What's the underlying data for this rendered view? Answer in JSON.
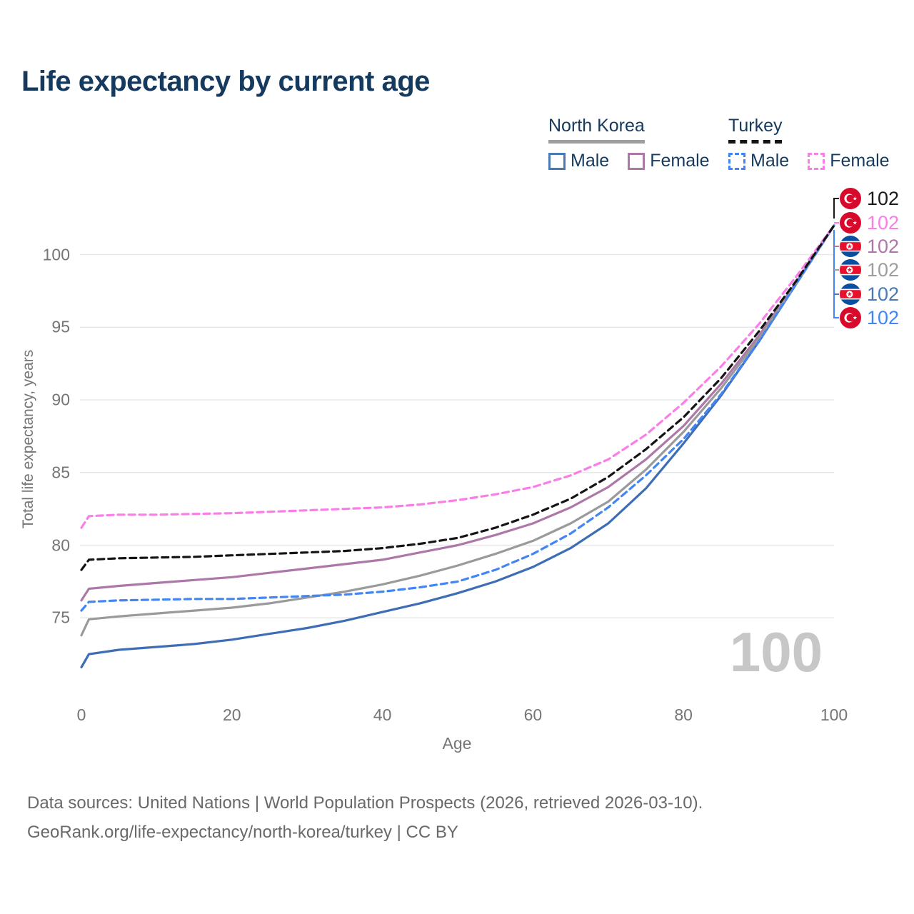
{
  "title": "Life expectancy by current age",
  "legend": {
    "groups": [
      {
        "label": "North Korea",
        "underline_style": "solid",
        "underline_color": "#9e9e9e",
        "items": [
          {
            "label": "Male",
            "color": "#4a7ab5",
            "line_style": "solid"
          },
          {
            "label": "Female",
            "color": "#ad77a8",
            "line_style": "solid"
          }
        ]
      },
      {
        "label": "Turkey",
        "underline_style": "dashed",
        "underline_color": "#141414",
        "items": [
          {
            "label": "Male",
            "color": "#4285f4",
            "line_style": "dashed"
          },
          {
            "label": "Female",
            "color": "#fb7de8",
            "line_style": "dashed"
          }
        ]
      }
    ]
  },
  "watermark": "100",
  "footer": {
    "line1": "Data sources: United Nations | World Population Prospects (2026, retrieved 2026-03-10).",
    "line2": "GeoRank.org/life-expectancy/north-korea/turkey | CC BY"
  },
  "end_labels": [
    {
      "value": "102",
      "flag": "turkey",
      "color": "#1a1a1a",
      "series": "Turkey total"
    },
    {
      "value": "102",
      "flag": "turkey",
      "color": "#fb7de8",
      "series": "Turkey female"
    },
    {
      "value": "102",
      "flag": "north-korea",
      "color": "#ad77a8",
      "series": "North Korea female"
    },
    {
      "value": "102",
      "flag": "north-korea",
      "color": "#9e9e9e",
      "series": "North Korea total"
    },
    {
      "value": "102",
      "flag": "north-korea",
      "color": "#4a7ab5",
      "series": "North Korea male"
    },
    {
      "value": "102",
      "flag": "turkey",
      "color": "#4285f4",
      "series": "Turkey male"
    }
  ],
  "chart_data": {
    "type": "line",
    "title": "Life expectancy by current age",
    "xlabel": "Age",
    "ylabel": "Total life expectancy, years",
    "xlim": [
      0,
      100
    ],
    "ylim": [
      70.5,
      102.5
    ],
    "x_ticks": [
      0,
      20,
      40,
      60,
      80,
      100
    ],
    "y_ticks": [
      75,
      80,
      85,
      90,
      95,
      100
    ],
    "grid": "horizontal",
    "legend_position": "top-right",
    "x": [
      0,
      1,
      5,
      10,
      15,
      20,
      25,
      30,
      35,
      40,
      45,
      50,
      55,
      60,
      65,
      70,
      75,
      80,
      85,
      90,
      95,
      100
    ],
    "series": [
      {
        "name": "North Korea Male",
        "color": "#3d6eb5",
        "dash": "solid",
        "values": [
          71.6,
          72.5,
          72.8,
          73.0,
          73.2,
          73.5,
          73.9,
          74.3,
          74.8,
          75.4,
          76.0,
          76.7,
          77.5,
          78.5,
          79.8,
          81.5,
          83.9,
          87.0,
          90.3,
          94.0,
          98.0,
          102
        ]
      },
      {
        "name": "North Korea Female",
        "color": "#ad77a8",
        "dash": "solid",
        "values": [
          76.2,
          77.0,
          77.2,
          77.4,
          77.6,
          77.8,
          78.1,
          78.4,
          78.7,
          79.0,
          79.5,
          80.0,
          80.7,
          81.5,
          82.6,
          84.0,
          85.9,
          88.2,
          91.1,
          94.4,
          98.1,
          102
        ]
      },
      {
        "name": "North Korea Total",
        "color": "#9a9a9a",
        "dash": "solid",
        "values": [
          73.8,
          74.9,
          75.1,
          75.3,
          75.5,
          75.7,
          76.0,
          76.4,
          76.8,
          77.3,
          77.9,
          78.6,
          79.4,
          80.3,
          81.5,
          83.0,
          85.2,
          87.8,
          90.8,
          94.2,
          98.0,
          102
        ]
      },
      {
        "name": "Turkey Male",
        "color": "#4285f4",
        "dash": "dashed",
        "values": [
          75.5,
          76.1,
          76.2,
          76.25,
          76.3,
          76.3,
          76.4,
          76.5,
          76.6,
          76.8,
          77.1,
          77.5,
          78.3,
          79.4,
          80.8,
          82.6,
          84.8,
          87.3,
          90.4,
          94.0,
          98.0,
          102
        ]
      },
      {
        "name": "Turkey Female",
        "color": "#fb7de8",
        "dash": "dashed",
        "values": [
          81.2,
          82.0,
          82.1,
          82.1,
          82.15,
          82.2,
          82.3,
          82.4,
          82.5,
          82.6,
          82.8,
          83.1,
          83.5,
          84.0,
          84.8,
          85.9,
          87.6,
          89.8,
          92.3,
          95.2,
          98.5,
          102
        ]
      },
      {
        "name": "Turkey Total",
        "color": "#141414",
        "dash": "dashed",
        "values": [
          78.3,
          79.0,
          79.1,
          79.15,
          79.2,
          79.3,
          79.4,
          79.5,
          79.6,
          79.8,
          80.1,
          80.5,
          81.2,
          82.1,
          83.2,
          84.7,
          86.6,
          88.8,
          91.5,
          94.7,
          98.2,
          102
        ]
      }
    ]
  }
}
